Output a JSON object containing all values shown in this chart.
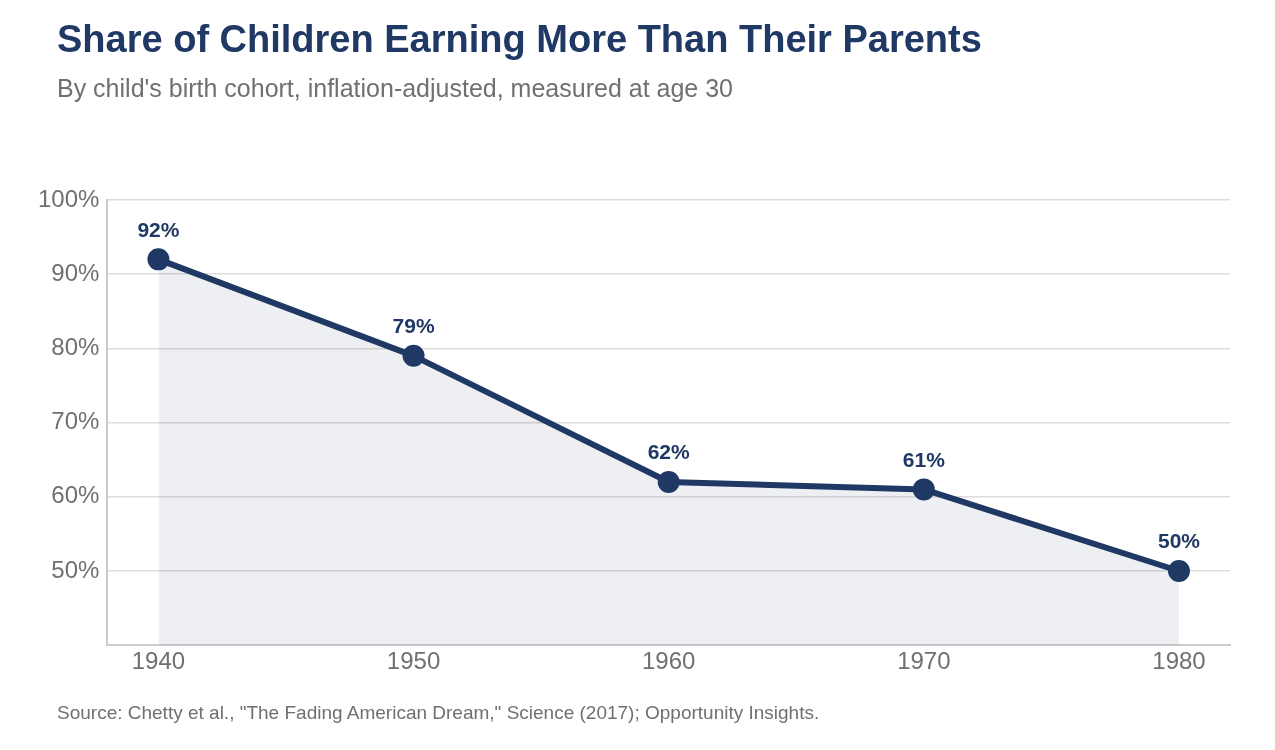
{
  "chart_data": {
    "type": "area",
    "title": "Share of Children Earning More Than Their Parents",
    "subtitle": "By child's birth cohort, inflation-adjusted, measured at age 30",
    "x": [
      1940,
      1950,
      1960,
      1970,
      1980
    ],
    "series": [
      {
        "color": "#1f3864",
        "values": [
          92,
          79,
          62,
          61,
          50
        ],
        "value_labels": [
          "92%",
          "79%",
          "62%",
          "61%",
          "50%"
        ]
      }
    ],
    "xlim": [
      1938,
      1982
    ],
    "xticks": [
      1940,
      1950,
      1960,
      1970,
      1980
    ],
    "ylim": [
      40,
      100
    ],
    "yticks": [
      {
        "value": 50,
        "label": "50%"
      },
      {
        "value": 60,
        "label": "60%"
      },
      {
        "value": 70,
        "label": "70%"
      },
      {
        "value": 80,
        "label": "80%"
      },
      {
        "value": 90,
        "label": "90%"
      },
      {
        "value": 100,
        "label": "100%"
      }
    ],
    "grid": "y",
    "legend": false,
    "marker": "circle",
    "line_style": "solid",
    "annotations": [
      "Source: Chetty et al., \"The Fading American Dream,\" Science (2017); Opportunity Insights."
    ]
  }
}
